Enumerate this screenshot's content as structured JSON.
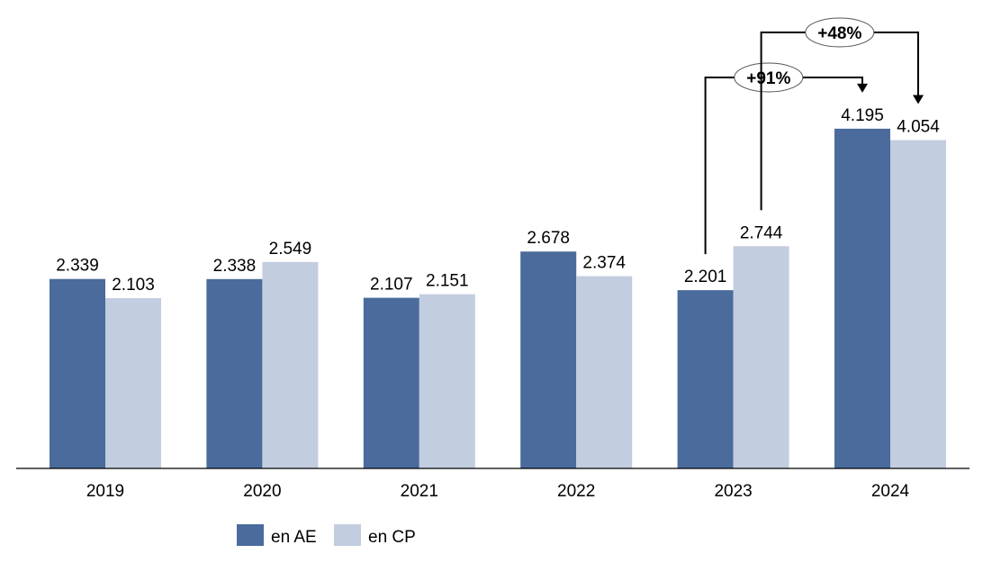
{
  "chart_data": {
    "type": "bar",
    "title": "",
    "xlabel": "",
    "ylabel": "",
    "categories": [
      "2019",
      "2020",
      "2021",
      "2022",
      "2023",
      "2024"
    ],
    "series": [
      {
        "name": "en AE",
        "color": "#4a6b9b",
        "values": [
          2.339,
          2.338,
          2.107,
          2.678,
          2.201,
          4.195
        ],
        "labels": [
          "2.339",
          "2.338",
          "2.107",
          "2.678",
          "2.201",
          "4.195"
        ]
      },
      {
        "name": "en CP",
        "color": "#c3cde0",
        "values": [
          2.103,
          2.549,
          2.151,
          2.374,
          2.744,
          4.054
        ],
        "labels": [
          "2.103",
          "2.549",
          "2.151",
          "2.374",
          "2.744",
          "4.054"
        ]
      }
    ],
    "ylim": [
      0,
      4.6
    ],
    "grid": false,
    "legend": "bottom",
    "annotations": [
      {
        "text": "+91%",
        "from": {
          "category": "2023",
          "series": "en AE"
        },
        "to": {
          "category": "2024",
          "series": "en AE"
        }
      },
      {
        "text": "+48%",
        "from": {
          "category": "2023",
          "series": "en CP"
        },
        "to": {
          "category": "2024",
          "series": "en CP"
        }
      }
    ]
  }
}
